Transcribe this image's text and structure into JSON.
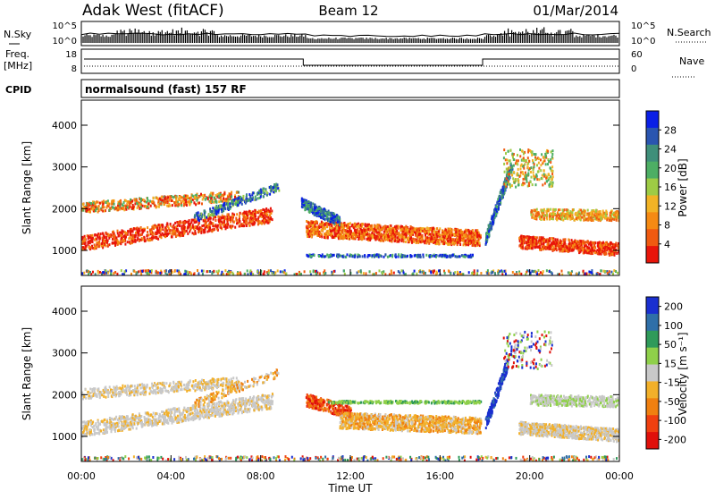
{
  "header": {
    "station": "Adak West (fitACF)",
    "beam": "Beam 12",
    "date": "01/Mar/2014"
  },
  "noise_panel": {
    "left_label": "N.Sky",
    "right_label": "N.Search",
    "left_ticks": [
      "10^5",
      "10^0"
    ],
    "right_ticks": [
      "10^5",
      "10^0"
    ]
  },
  "freq_panel": {
    "left_label_1": "Freq.",
    "left_label_2": "[MHz]",
    "right_label": "Nave",
    "left_ticks": [
      "18",
      "8"
    ],
    "right_ticks": [
      "60",
      "0"
    ]
  },
  "cpid": {
    "label": "CPID",
    "program": "normalsound (fast) 157 RF"
  },
  "chart_data": [
    {
      "type": "heatmap",
      "name": "power",
      "ylabel": "Slant Range [km]",
      "y_ticks": [
        "1000",
        "2000",
        "3000",
        "4000"
      ],
      "ylim": [
        400,
        4600
      ],
      "colorbar": {
        "label": "Power [dB]",
        "ticks": [
          "4",
          "8",
          "12",
          "16",
          "20",
          "24",
          "28"
        ],
        "colors": [
          "#0a1fe6",
          "#2a55b0",
          "#3f8f7a",
          "#4dae64",
          "#9ecb45",
          "#f2b325",
          "#f58a13",
          "#f05a10",
          "#e8150a"
        ]
      }
    },
    {
      "type": "heatmap",
      "name": "velocity",
      "ylabel": "Slant Range [km]",
      "xlabel": "Time UT",
      "x_ticks": [
        "00:00",
        "04:00",
        "08:00",
        "12:00",
        "16:00",
        "20:00",
        "00:00"
      ],
      "y_ticks": [
        "1000",
        "2000",
        "3000",
        "4000"
      ],
      "ylim": [
        400,
        4600
      ],
      "colorbar": {
        "label": "Velocity [m s⁻¹]",
        "ticks": [
          "200",
          "100",
          "50",
          "15",
          "-15",
          "-50",
          "-100",
          "-200"
        ],
        "colors": [
          "#1a2fd0",
          "#2f6fa8",
          "#2f9a5a",
          "#8fd04a",
          "#c8c8c8",
          "#f2b02a",
          "#f08010",
          "#f04010",
          "#e0100a"
        ]
      }
    }
  ]
}
